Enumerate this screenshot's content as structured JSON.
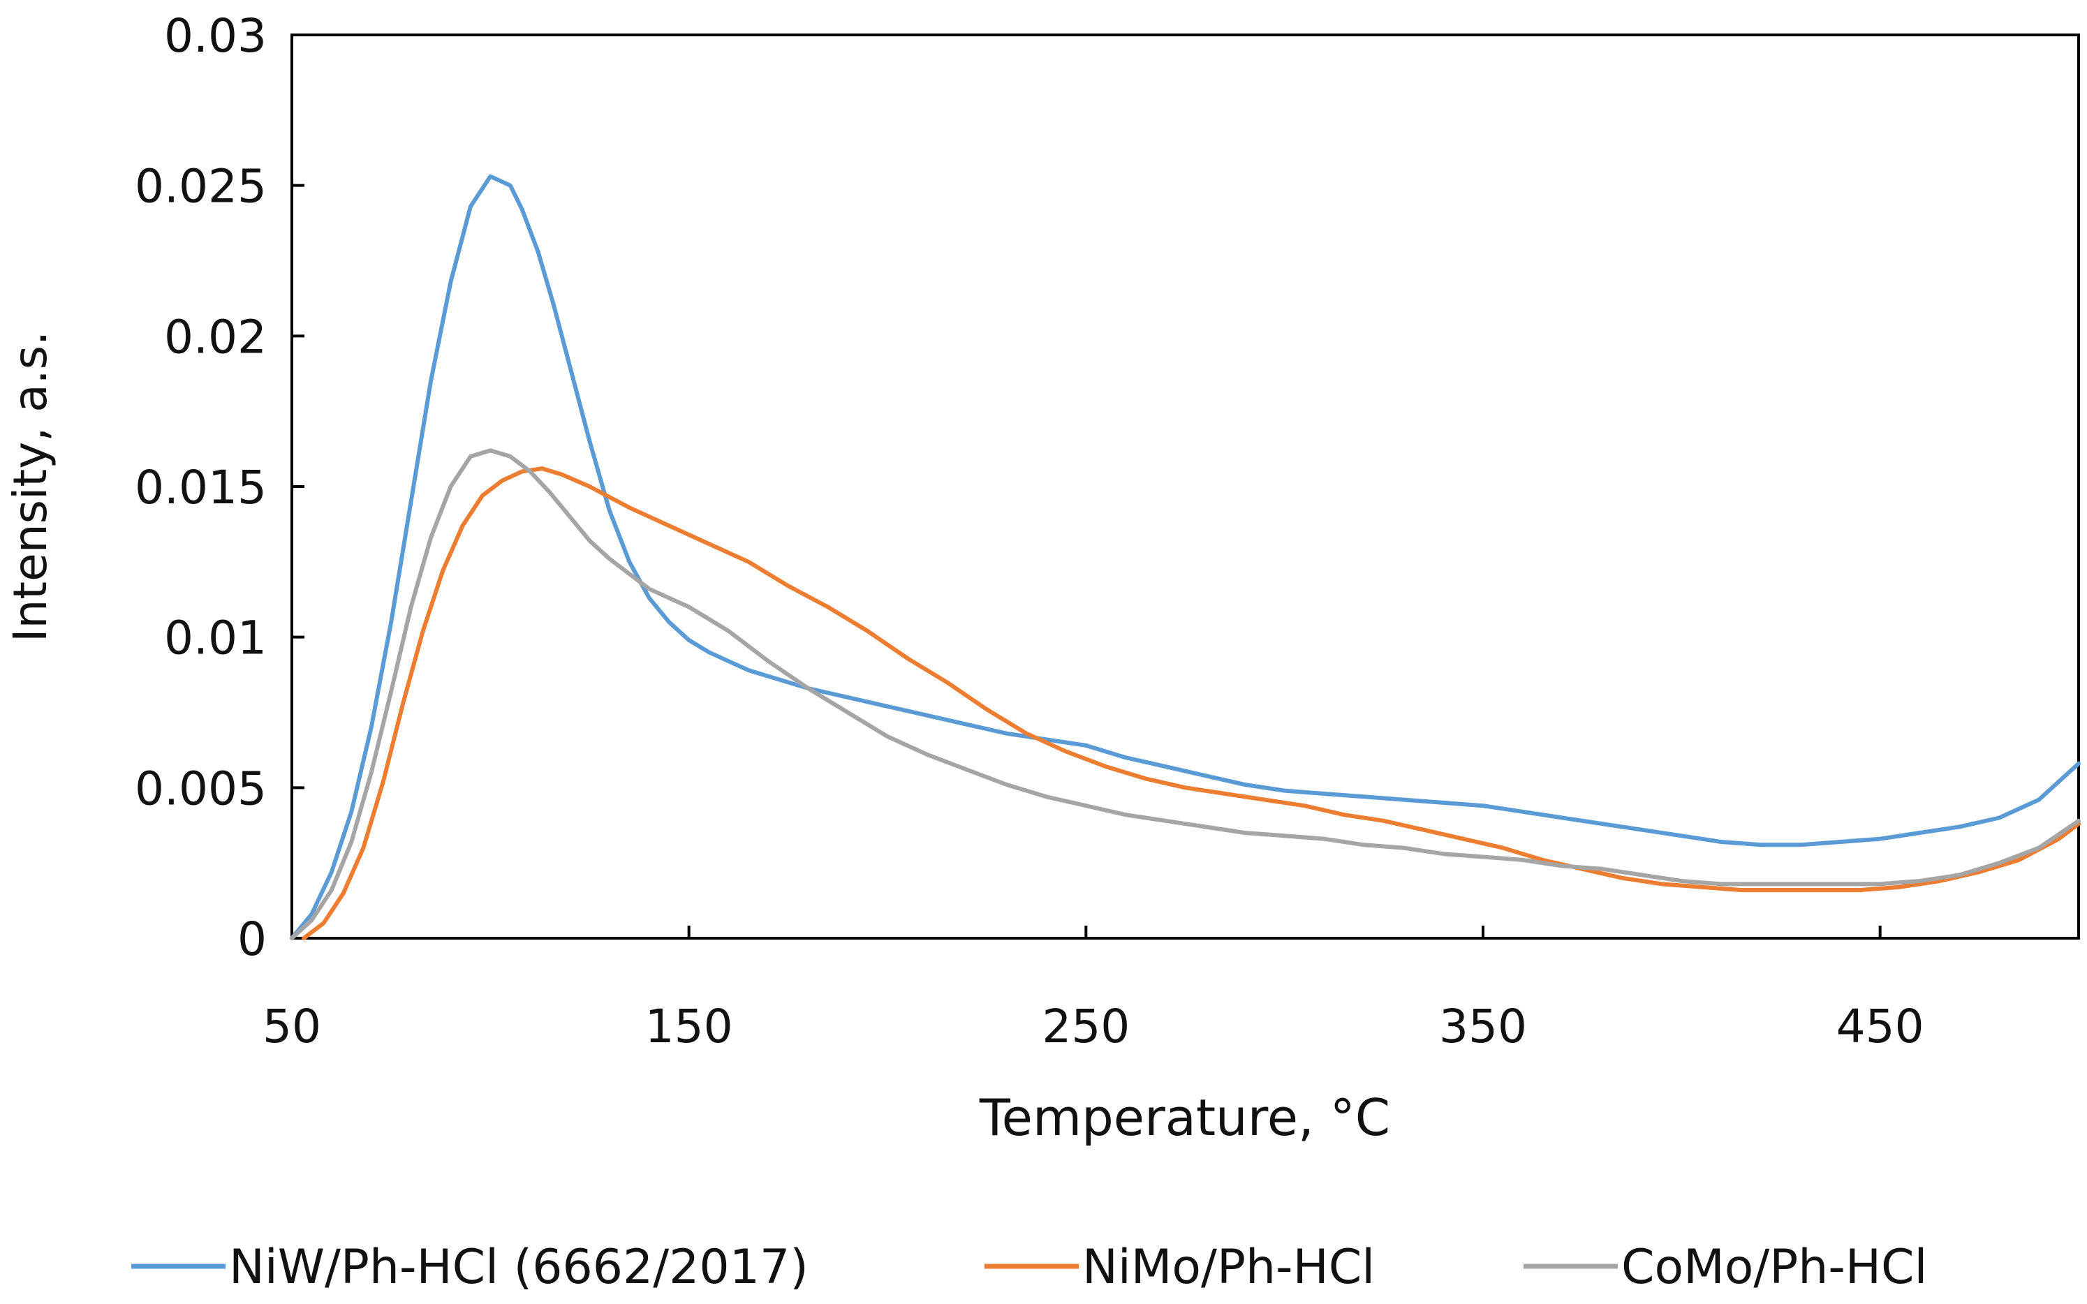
{
  "chart_data": {
    "type": "line",
    "title": "",
    "xlabel": "Temperature, °C",
    "ylabel": "Intensity, a.s.",
    "xlim": [
      50,
      500
    ],
    "ylim": [
      0,
      0.03
    ],
    "x_ticks": [
      50,
      150,
      250,
      350,
      450
    ],
    "x_tick_labels": [
      "50",
      "150",
      "250",
      "350",
      "450"
    ],
    "y_ticks": [
      0,
      0.005,
      0.01,
      0.015,
      0.02,
      0.025,
      0.03
    ],
    "y_tick_labels": [
      "0",
      "0.005",
      "0.01",
      "0.015",
      "0.02",
      "0.025",
      "0.03"
    ],
    "grid": false,
    "legend_position": "bottom",
    "series": [
      {
        "name": "NiW/Ph-HCl (6662/2017)",
        "color": "#5B9BD5",
        "x": [
          50,
          55,
          60,
          65,
          70,
          75,
          80,
          85,
          90,
          95,
          100,
          105,
          108,
          112,
          116,
          120,
          125,
          130,
          135,
          140,
          145,
          150,
          155,
          160,
          165,
          170,
          180,
          190,
          200,
          210,
          220,
          230,
          240,
          250,
          260,
          270,
          280,
          290,
          300,
          310,
          320,
          330,
          340,
          350,
          360,
          370,
          380,
          390,
          400,
          410,
          420,
          430,
          440,
          450,
          460,
          470,
          480,
          490,
          500
        ],
        "y": [
          0.0,
          0.0008,
          0.0022,
          0.0042,
          0.007,
          0.0105,
          0.0145,
          0.0185,
          0.0218,
          0.0243,
          0.0253,
          0.025,
          0.0242,
          0.0228,
          0.021,
          0.019,
          0.0165,
          0.0142,
          0.0125,
          0.0113,
          0.0105,
          0.0099,
          0.0095,
          0.0092,
          0.0089,
          0.0087,
          0.0083,
          0.008,
          0.0077,
          0.0074,
          0.0071,
          0.0068,
          0.0066,
          0.0064,
          0.006,
          0.0057,
          0.0054,
          0.0051,
          0.0049,
          0.0048,
          0.0047,
          0.0046,
          0.0045,
          0.0044,
          0.0042,
          0.004,
          0.0038,
          0.0036,
          0.0034,
          0.0032,
          0.0031,
          0.0031,
          0.0032,
          0.0033,
          0.0035,
          0.0037,
          0.004,
          0.0046,
          0.0058
        ]
      },
      {
        "name": "NiMo/Ph-HCl",
        "color": "#ED7D31",
        "x": [
          53,
          58,
          63,
          68,
          73,
          78,
          83,
          88,
          93,
          98,
          103,
          108,
          113,
          118,
          125,
          135,
          145,
          155,
          165,
          175,
          185,
          195,
          205,
          215,
          225,
          235,
          245,
          255,
          265,
          275,
          285,
          295,
          305,
          315,
          325,
          335,
          345,
          355,
          365,
          375,
          385,
          395,
          405,
          415,
          425,
          435,
          445,
          455,
          465,
          475,
          485,
          495,
          500
        ],
        "y": [
          0.0,
          0.0005,
          0.0015,
          0.003,
          0.0052,
          0.0078,
          0.0102,
          0.0122,
          0.0137,
          0.0147,
          0.0152,
          0.0155,
          0.0156,
          0.0154,
          0.015,
          0.0143,
          0.0137,
          0.0131,
          0.0125,
          0.0117,
          0.011,
          0.0102,
          0.0093,
          0.0085,
          0.0076,
          0.0068,
          0.0062,
          0.0057,
          0.0053,
          0.005,
          0.0048,
          0.0046,
          0.0044,
          0.0041,
          0.0039,
          0.0036,
          0.0033,
          0.003,
          0.0026,
          0.0023,
          0.002,
          0.0018,
          0.0017,
          0.0016,
          0.0016,
          0.0016,
          0.0016,
          0.0017,
          0.0019,
          0.0022,
          0.0026,
          0.0033,
          0.0038
        ]
      },
      {
        "name": "CoMo/Ph-HCl",
        "color": "#A5A5A5",
        "x": [
          50,
          55,
          60,
          65,
          70,
          75,
          80,
          85,
          90,
          95,
          100,
          105,
          110,
          115,
          120,
          125,
          130,
          140,
          150,
          160,
          170,
          180,
          190,
          200,
          210,
          220,
          230,
          240,
          250,
          260,
          270,
          280,
          290,
          300,
          310,
          320,
          330,
          340,
          350,
          360,
          370,
          380,
          390,
          400,
          410,
          420,
          430,
          440,
          450,
          460,
          470,
          480,
          490,
          500
        ],
        "y": [
          0.0,
          0.0006,
          0.0016,
          0.0032,
          0.0055,
          0.0082,
          0.011,
          0.0133,
          0.015,
          0.016,
          0.0162,
          0.016,
          0.0155,
          0.0148,
          0.014,
          0.0132,
          0.0126,
          0.0116,
          0.011,
          0.0102,
          0.0092,
          0.0083,
          0.0075,
          0.0067,
          0.0061,
          0.0056,
          0.0051,
          0.0047,
          0.0044,
          0.0041,
          0.0039,
          0.0037,
          0.0035,
          0.0034,
          0.0033,
          0.0031,
          0.003,
          0.0028,
          0.0027,
          0.0026,
          0.0024,
          0.0023,
          0.0021,
          0.0019,
          0.0018,
          0.0018,
          0.0018,
          0.0018,
          0.0018,
          0.0019,
          0.0021,
          0.0025,
          0.003,
          0.0039
        ]
      }
    ]
  }
}
